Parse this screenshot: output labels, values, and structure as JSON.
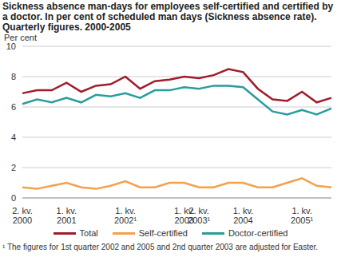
{
  "chart_data": {
    "type": "line",
    "title": "Sickness absence man-days for employees self-certified and certified by a doctor. In per cent of scheduled man days (Sickness absence rate). Quarterly figures. 2000-2005",
    "y_label": "Per cent",
    "annotations": [
      "¹ The figures for 1st quarter 2002 and 2005 and 2nd quarter 2003 are adjusted for Easter."
    ],
    "categories": [
      "2. kv. 2000",
      null,
      null,
      "1. kv. 2001",
      null,
      null,
      null,
      "1. kv. 2002¹",
      null,
      null,
      null,
      "1. kv. 2003",
      "2. kv. 2003¹",
      null,
      null,
      "1. kv. 2004",
      null,
      null,
      null,
      "1. kv. 2005¹",
      null,
      null
    ],
    "series": [
      {
        "name": "Total",
        "color": "#a01c2c",
        "values": [
          6.9,
          7.1,
          7.1,
          7.6,
          7.0,
          7.4,
          7.5,
          8.0,
          7.2,
          7.7,
          7.8,
          8.0,
          7.9,
          8.1,
          8.5,
          8.3,
          7.2,
          6.5,
          6.4,
          7.0,
          6.3,
          6.6
        ]
      },
      {
        "name": "Self-certified",
        "color": "#f5a04a",
        "values": [
          0.7,
          0.6,
          0.8,
          1.0,
          0.7,
          0.6,
          0.8,
          1.1,
          0.7,
          0.7,
          1.0,
          1.0,
          0.7,
          0.7,
          1.0,
          1.0,
          0.7,
          0.7,
          1.0,
          1.3,
          0.8,
          0.7
        ]
      },
      {
        "name": "Doctor-certified",
        "color": "#2a9c9c",
        "values": [
          6.2,
          6.5,
          6.3,
          6.6,
          6.3,
          6.8,
          6.7,
          6.9,
          6.6,
          7.1,
          7.1,
          7.3,
          7.2,
          7.4,
          7.4,
          7.3,
          6.5,
          5.7,
          5.5,
          5.8,
          5.5,
          5.9
        ]
      }
    ],
    "ylim": [
      0,
      10
    ],
    "yticks": [
      0,
      2,
      4,
      6,
      8,
      10
    ],
    "grid": true,
    "legend": "bottom"
  }
}
